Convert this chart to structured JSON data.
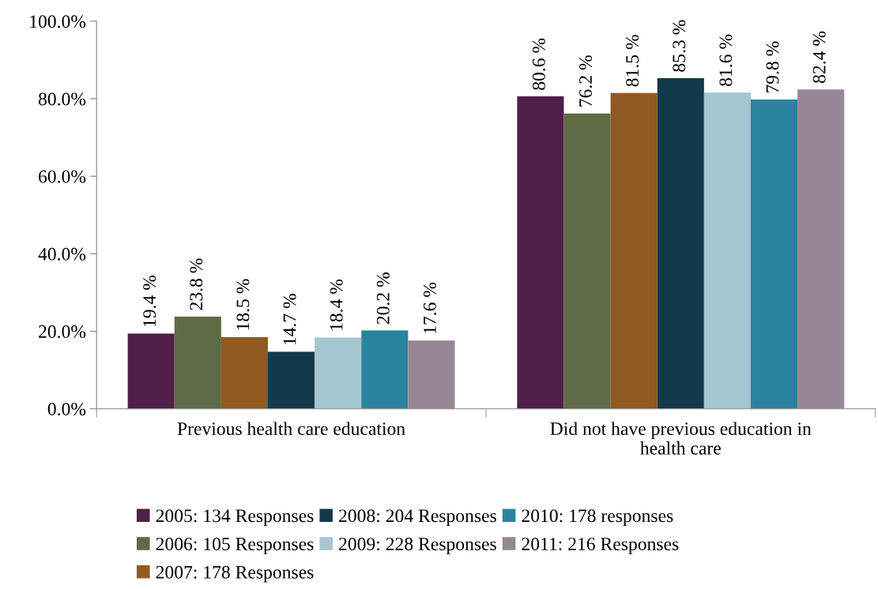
{
  "chart_data": {
    "type": "bar",
    "categories": [
      "Previous health care education",
      "Did not have previous education in health care"
    ],
    "series": [
      {
        "name": "2005: 134 Responses",
        "color": "#4f1f4a",
        "values": [
          19.4,
          80.6
        ],
        "value_labels": [
          "19.4 %",
          "80.6 %"
        ]
      },
      {
        "name": "2006: 105 Responses",
        "color": "#5f6b45",
        "values": [
          23.8,
          76.2
        ],
        "value_labels": [
          "23.8 %",
          "76.2 %"
        ]
      },
      {
        "name": "2007: 178 Responses",
        "color": "#8e5a20",
        "values": [
          18.5,
          81.5
        ],
        "value_labels": [
          "18.5 %",
          "81.5 %"
        ]
      },
      {
        "name": "2008: 204 Responses",
        "color": "#133a4a",
        "values": [
          14.7,
          85.3
        ],
        "value_labels": [
          "14.7 %",
          "85.3 %"
        ]
      },
      {
        "name": "2009: 228 Responses",
        "color": "#a3c6d1",
        "values": [
          18.4,
          81.6
        ],
        "value_labels": [
          "18.4 %",
          "81.6 %"
        ]
      },
      {
        "name": "2010: 178 responses",
        "color": "#2a84a0",
        "values": [
          20.2,
          79.8
        ],
        "value_labels": [
          "20.2 %",
          "79.8 %"
        ]
      },
      {
        "name": "2011: 216 Responses",
        "color": "#978796",
        "values": [
          17.6,
          82.4
        ],
        "value_labels": [
          "17.6 %",
          "82.4 %"
        ]
      }
    ],
    "ylim": [
      0,
      100
    ],
    "yticks": [
      {
        "value": 0,
        "label": "0.0%"
      },
      {
        "value": 20,
        "label": "20.0%"
      },
      {
        "value": 40,
        "label": "40.0%"
      },
      {
        "value": 60,
        "label": "60.0%"
      },
      {
        "value": 80,
        "label": "80.0%"
      },
      {
        "value": 100,
        "label": "100.0%"
      }
    ],
    "grid": false,
    "legend": "bottom"
  }
}
